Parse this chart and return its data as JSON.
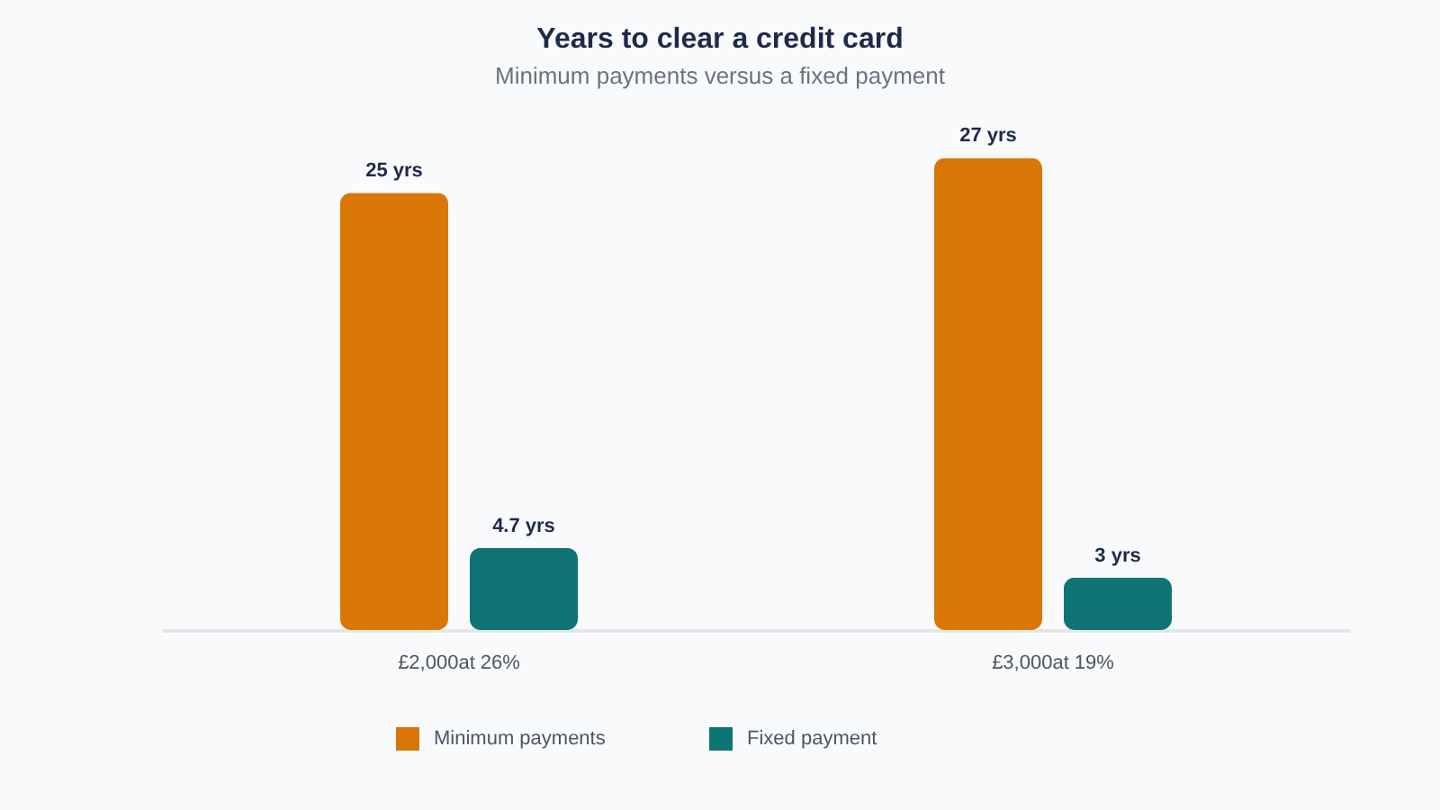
{
  "chart_data": {
    "type": "bar",
    "title": "Years to clear a credit card",
    "subtitle": "Minimum payments versus a fixed payment",
    "categories": [
      "£2,000at 26%",
      "£3,000at 19%"
    ],
    "series": [
      {
        "name": "Minimum payments",
        "color": "#d97706",
        "values": [
          25,
          27
        ],
        "value_labels": [
          "25 yrs",
          "27 yrs"
        ]
      },
      {
        "name": "Fixed payment",
        "color": "#0e7474",
        "values": [
          4.7,
          3
        ],
        "value_labels": [
          "4.7 yrs",
          "3 yrs"
        ]
      }
    ],
    "legend": "bottom",
    "grid": false,
    "tick_labels": "x"
  }
}
